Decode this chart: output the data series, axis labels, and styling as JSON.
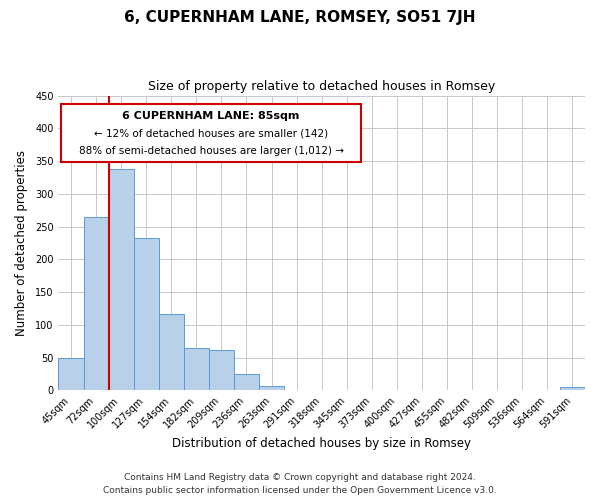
{
  "title": "6, CUPERNHAM LANE, ROMSEY, SO51 7JH",
  "subtitle": "Size of property relative to detached houses in Romsey",
  "xlabel": "Distribution of detached houses by size in Romsey",
  "ylabel": "Number of detached properties",
  "bar_labels": [
    "45sqm",
    "72sqm",
    "100sqm",
    "127sqm",
    "154sqm",
    "182sqm",
    "209sqm",
    "236sqm",
    "263sqm",
    "291sqm",
    "318sqm",
    "345sqm",
    "373sqm",
    "400sqm",
    "427sqm",
    "455sqm",
    "482sqm",
    "509sqm",
    "536sqm",
    "564sqm",
    "591sqm"
  ],
  "bar_values": [
    50,
    265,
    338,
    232,
    116,
    65,
    62,
    25,
    7,
    1,
    0,
    1,
    0,
    0,
    0,
    0,
    0,
    0,
    0,
    0,
    5
  ],
  "bar_color": "#b8d0e8",
  "bar_edge_color": "#5b9bd5",
  "property_line_label": "6 CUPERNHAM LANE: 85sqm",
  "annotation_line1": "← 12% of detached houses are smaller (142)",
  "annotation_line2": "88% of semi-detached houses are larger (1,012) →",
  "annotation_box_color": "#ffffff",
  "annotation_box_edge": "#cc0000",
  "red_line_color": "#cc0000",
  "red_line_index": 1.5,
  "ylim": [
    0,
    450
  ],
  "yticks": [
    0,
    50,
    100,
    150,
    200,
    250,
    300,
    350,
    400,
    450
  ],
  "footnote1": "Contains HM Land Registry data © Crown copyright and database right 2024.",
  "footnote2": "Contains public sector information licensed under the Open Government Licence v3.0.",
  "bg_color": "#ffffff",
  "grid_color": "#c8c8c8",
  "title_fontsize": 11,
  "subtitle_fontsize": 9,
  "axis_label_fontsize": 8.5,
  "tick_fontsize": 7,
  "footnote_fontsize": 6.5
}
